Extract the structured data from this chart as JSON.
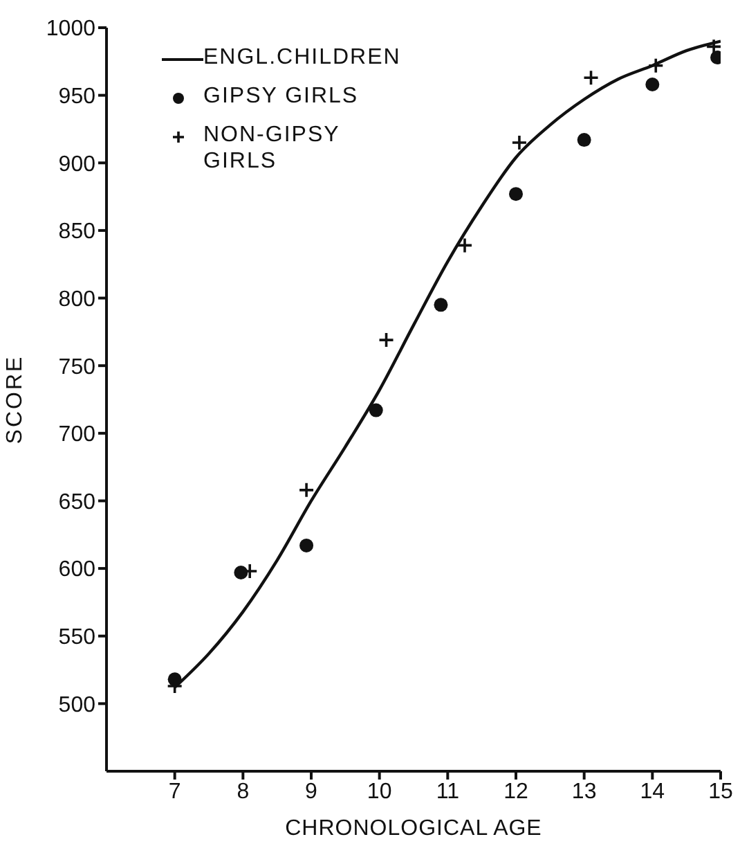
{
  "chart_data": {
    "type": "scatter",
    "xlabel": "CHRONOLOGICAL AGE",
    "ylabel": "SCORE",
    "xlim": [
      6,
      15
    ],
    "xticks": [
      7,
      8,
      9,
      10,
      11,
      12,
      13,
      14,
      15
    ],
    "ylim": [
      450,
      1000
    ],
    "yticks": [
      500,
      550,
      600,
      650,
      700,
      750,
      800,
      850,
      900,
      950,
      1000
    ],
    "grid": false,
    "legend": "top left",
    "series": [
      {
        "type": "line",
        "name": "ENGL.CHILDREN",
        "color": "#111111",
        "marker": "none",
        "line_style": "solid",
        "x": [
          7,
          7.5,
          8,
          8.5,
          9,
          9.5,
          10,
          10.5,
          11,
          11.5,
          12,
          12.5,
          13,
          13.5,
          14,
          14.5,
          15
        ],
        "values": [
          512,
          537,
          568,
          606,
          650,
          690,
          732,
          780,
          827,
          868,
          904,
          928,
          947,
          962,
          972,
          983,
          990
        ]
      },
      {
        "name": "GIPSY GIRLS",
        "color": "#111111",
        "marker": "circle",
        "x": [
          7,
          7.97,
          8.93,
          9.95,
          10.9,
          12,
          13,
          14,
          14.95
        ],
        "values": [
          518,
          597,
          617,
          717,
          795,
          877,
          917,
          958,
          978
        ]
      },
      {
        "name": "NON-GIPSY GIRLS",
        "color": "#111111",
        "marker": "cross",
        "x": [
          7,
          8.1,
          8.93,
          10.1,
          11.25,
          12.05,
          13.1,
          14.05,
          14.9
        ],
        "values": [
          513,
          598,
          658,
          769,
          839,
          915,
          963,
          972,
          986
        ]
      }
    ]
  }
}
